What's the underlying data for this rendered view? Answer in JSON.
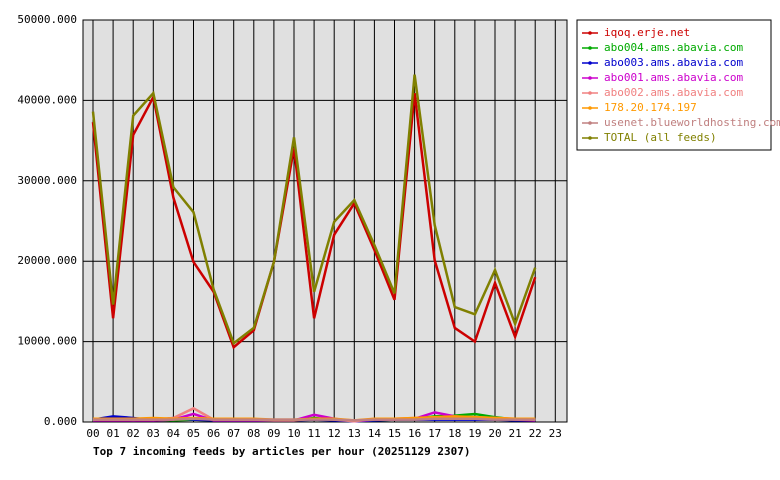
{
  "chart_data": {
    "type": "line",
    "title": "Top 7 incoming feeds by articles per hour (20251129 2307)",
    "categories": [
      "00",
      "01",
      "02",
      "03",
      "04",
      "05",
      "06",
      "07",
      "08",
      "09",
      "10",
      "11",
      "12",
      "13",
      "14",
      "15",
      "16",
      "17",
      "18",
      "19",
      "20",
      "21",
      "22",
      "23"
    ],
    "ylim": [
      0,
      50000
    ],
    "yticks": [
      {
        "value": 0,
        "label": "0.000"
      },
      {
        "value": 10000,
        "label": "10000.000"
      },
      {
        "value": 20000,
        "label": "20000.000"
      },
      {
        "value": 30000,
        "label": "30000.000"
      },
      {
        "value": 40000,
        "label": "40000.000"
      },
      {
        "value": 50000,
        "label": "50000.000"
      }
    ],
    "grid": true,
    "legend": "right",
    "series": [
      {
        "name": "iqoq.erje.net",
        "color": "#cc0000",
        "values": [
          37300,
          12900,
          35700,
          40400,
          27900,
          19900,
          16200,
          9300,
          11400,
          19900,
          34100,
          12900,
          23300,
          27200,
          21400,
          15200,
          40900,
          20100,
          11700,
          10000,
          17300,
          10600,
          18000,
          null
        ]
      },
      {
        "name": "abo004.ams.abavia.com",
        "color": "#00aa00",
        "values": [
          200,
          300,
          200,
          300,
          200,
          300,
          200,
          200,
          200,
          200,
          200,
          500,
          300,
          100,
          200,
          300,
          400,
          700,
          800,
          1000,
          600,
          300,
          200,
          null
        ]
      },
      {
        "name": "abo003.ams.abavia.com",
        "color": "#0000cc",
        "values": [
          300,
          700,
          500,
          200,
          500,
          300,
          200,
          200,
          200,
          200,
          200,
          300,
          200,
          100,
          200,
          300,
          300,
          300,
          300,
          300,
          300,
          200,
          200,
          null
        ]
      },
      {
        "name": "abo001.ams.abavia.com",
        "color": "#cc00cc",
        "values": [
          200,
          200,
          200,
          200,
          300,
          1000,
          200,
          200,
          200,
          200,
          200,
          900,
          400,
          100,
          300,
          300,
          400,
          1200,
          700,
          500,
          500,
          300,
          200,
          null
        ]
      },
      {
        "name": "abo002.ams.abavia.com",
        "color": "#f08080",
        "values": [
          300,
          300,
          300,
          300,
          500,
          1700,
          300,
          300,
          300,
          200,
          200,
          400,
          300,
          100,
          400,
          400,
          500,
          500,
          600,
          600,
          500,
          400,
          300,
          null
        ]
      },
      {
        "name": "178.20.174.197",
        "color": "#ff9900",
        "values": [
          400,
          400,
          400,
          500,
          400,
          500,
          400,
          400,
          400,
          300,
          300,
          400,
          400,
          200,
          400,
          400,
          500,
          600,
          700,
          600,
          500,
          400,
          400,
          null
        ]
      },
      {
        "name": "usenet.blueworldhosting.com",
        "color": "#c08080",
        "values": [
          300,
          300,
          300,
          300,
          300,
          400,
          300,
          300,
          300,
          300,
          300,
          300,
          300,
          200,
          300,
          300,
          300,
          400,
          400,
          400,
          300,
          300,
          300,
          null
        ]
      },
      {
        "name": "TOTAL (all feeds)",
        "color": "#808000",
        "values": [
          38600,
          14600,
          38100,
          40900,
          29200,
          26100,
          16500,
          9800,
          11700,
          19900,
          35400,
          16200,
          24900,
          27600,
          22000,
          16000,
          43200,
          24500,
          14300,
          13400,
          18900,
          12200,
          19200,
          null
        ]
      }
    ]
  }
}
